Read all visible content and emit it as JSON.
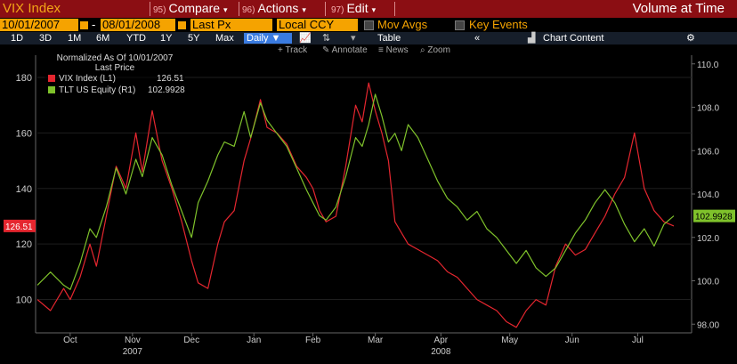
{
  "header": {
    "title": "VIX Index",
    "menus": [
      {
        "num": "95)",
        "label": "Compare"
      },
      {
        "num": "96)",
        "label": "Actions"
      },
      {
        "num": "97)",
        "label": "Edit"
      }
    ],
    "right_label": "Volume at Time"
  },
  "controls": {
    "start_date": "10/01/2007",
    "end_date": "08/01/2008",
    "price_field": "Last Px",
    "currency": "Local CCY",
    "mov_avgs": "Mov Avgs",
    "key_events": "Key Events"
  },
  "periods": [
    "1D",
    "3D",
    "1M",
    "6M",
    "YTD",
    "1Y",
    "5Y",
    "Max"
  ],
  "frequency": "Daily",
  "toolbar": {
    "table": "Table",
    "chart_content": "Chart Content"
  },
  "tools": [
    "Track",
    "Annotate",
    "News",
    "Zoom"
  ],
  "legend": {
    "line1": "Normalized As Of 10/01/2007",
    "line2": "Last Price",
    "vix_label": "VIX Index  (L1)",
    "vix_value": "126.51",
    "tlt_label": "TLT US Equity  (R1)",
    "tlt_value": "102.9928"
  },
  "colors": {
    "vix": "#e5262f",
    "tlt": "#7fc22b",
    "header_bg": "#8b0e13",
    "field_bg": "#f5a300"
  },
  "chart_data": {
    "type": "line",
    "title": "VIX Index vs TLT US Equity (Normalized As Of 10/01/2007)",
    "x_tick_labels": [
      "Oct",
      "Nov",
      "Dec",
      "Jan",
      "Feb",
      "Mar",
      "Apr",
      "May",
      "Jun",
      "Jul"
    ],
    "x_tick_index": [
      10,
      29,
      47,
      66,
      84,
      103,
      123,
      144,
      163,
      183
    ],
    "year_labels": [
      {
        "label": "2007",
        "index": 29
      },
      {
        "label": "2008",
        "index": 123
      }
    ],
    "y_left": {
      "ticks": [
        100,
        120,
        140,
        160,
        180
      ],
      "range": [
        88,
        188
      ],
      "last_label": "126.51"
    },
    "y_right": {
      "ticks": [
        "98.00",
        "100.0",
        "102.0",
        "104.0",
        "106.0",
        "108.0",
        "110.0"
      ],
      "range": [
        97.6,
        110.4
      ],
      "last_label": "102.9928"
    },
    "series": [
      {
        "name": "VIX Index (L1)",
        "axis": "left",
        "x": [
          0,
          4,
          8,
          10,
          13,
          16,
          18,
          21,
          24,
          27,
          30,
          32,
          35,
          38,
          41,
          44,
          47,
          49,
          52,
          55,
          57,
          60,
          63,
          65,
          68,
          70,
          73,
          76,
          79,
          82,
          84,
          86,
          88,
          91,
          94,
          97,
          99,
          101,
          103,
          105,
          107,
          109,
          111,
          113,
          116,
          119,
          122,
          125,
          128,
          131,
          134,
          137,
          140,
          143,
          146,
          149,
          152,
          155,
          158,
          161,
          164,
          167,
          170,
          173,
          176,
          179,
          182,
          185,
          188,
          191,
          194
        ],
        "y": [
          100,
          96,
          104,
          100,
          108,
          120,
          112,
          130,
          148,
          140,
          160,
          146,
          168,
          150,
          140,
          128,
          114,
          106,
          104,
          120,
          128,
          132,
          150,
          158,
          172,
          162,
          160,
          156,
          148,
          144,
          140,
          132,
          128,
          130,
          148,
          170,
          164,
          178,
          168,
          160,
          150,
          128,
          124,
          120,
          118,
          116,
          114,
          110,
          108,
          104,
          100,
          98,
          96,
          92,
          90,
          96,
          100,
          98,
          112,
          120,
          116,
          118,
          124,
          130,
          138,
          144,
          160,
          140,
          132,
          128,
          126.5
        ]
      },
      {
        "name": "TLT US Equity (R1)",
        "axis": "right",
        "x": [
          0,
          4,
          8,
          10,
          13,
          16,
          18,
          21,
          24,
          27,
          30,
          32,
          35,
          38,
          41,
          44,
          47,
          49,
          52,
          55,
          57,
          60,
          63,
          65,
          68,
          70,
          73,
          76,
          79,
          82,
          84,
          86,
          88,
          91,
          94,
          97,
          99,
          101,
          103,
          105,
          107,
          109,
          111,
          113,
          116,
          119,
          122,
          125,
          128,
          131,
          134,
          137,
          140,
          143,
          146,
          149,
          152,
          155,
          158,
          161,
          164,
          167,
          170,
          173,
          176,
          179,
          182,
          185,
          188,
          191,
          194
        ],
        "y": [
          99.8,
          100.4,
          99.8,
          99.6,
          100.8,
          102.4,
          102.0,
          103.4,
          105.2,
          104.0,
          105.6,
          104.8,
          106.6,
          105.8,
          104.4,
          103.2,
          102.0,
          103.6,
          104.6,
          105.8,
          106.4,
          106.2,
          107.8,
          106.6,
          108.2,
          107.4,
          106.8,
          106.2,
          105.2,
          104.2,
          103.6,
          103.0,
          102.8,
          103.4,
          104.8,
          106.6,
          106.2,
          107.2,
          108.6,
          107.6,
          106.4,
          106.8,
          106.0,
          107.2,
          106.6,
          105.6,
          104.6,
          103.8,
          103.4,
          102.8,
          103.2,
          102.4,
          102.0,
          101.4,
          100.8,
          101.4,
          100.6,
          100.2,
          100.6,
          101.4,
          102.2,
          102.8,
          103.6,
          104.2,
          103.6,
          102.6,
          101.8,
          102.4,
          101.6,
          102.6,
          102.99
        ]
      }
    ]
  }
}
